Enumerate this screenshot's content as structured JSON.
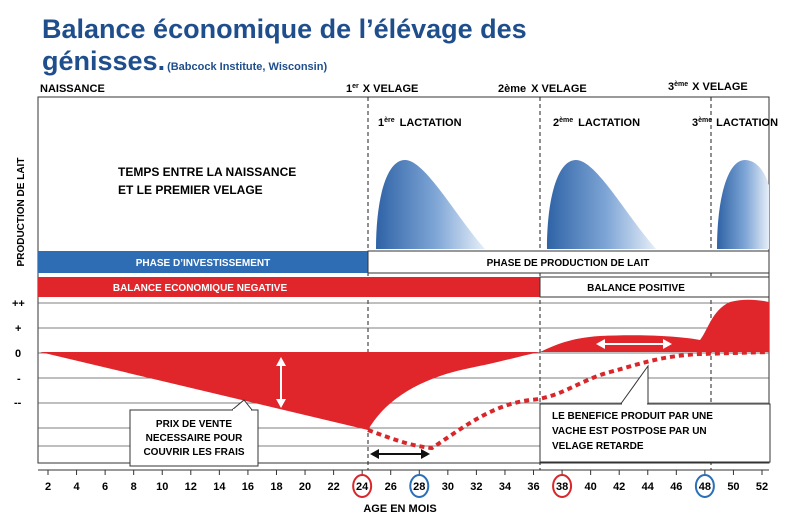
{
  "title": {
    "line1": "Balance économique de l’élévage des",
    "line2": "génisses.",
    "source": "(Babcock Institute, Wisconsin)"
  },
  "events": {
    "birth": "NAISSANCE",
    "calving1_num": "1",
    "calving1_sup": "er",
    "calving1_text": "X VELAGE",
    "calving2_num": "2ème",
    "calving2_text": "X VELAGE",
    "calving3_num": "3",
    "calving3_sup": "ème",
    "calving3_text": "X VELAGE"
  },
  "lactations": {
    "l1_num": "1",
    "l1_sup": "ère",
    "l1_text": "LACTATION",
    "l2_num": "2",
    "l2_sup": "ème",
    "l2_text": "LACTATION",
    "l3_num": "3",
    "l3_sup": "ème",
    "l3_text": "LACTATION"
  },
  "rearing_period": {
    "line1": "TEMPS ENTRE LA NAISSANCE",
    "line2": "ET LE PREMIER VELAGE"
  },
  "y_label_top": "PRODUCTION DE LAIT",
  "phases": {
    "investment": "PHASE D’INVESTISSEMENT",
    "production": "PHASE DE PRODUCTION DE LAIT",
    "negative": "BALANCE ECONOMIQUE NEGATIVE",
    "positive": "BALANCE POSITIVE"
  },
  "balance_scale": [
    "++",
    "+",
    "0",
    "-",
    "--"
  ],
  "annotations": {
    "sale_price": [
      "PRIX DE VENTE",
      "NECESSAIRE POUR",
      "COUVRIR LES FRAIS"
    ],
    "postponed": [
      "LE BENEFICE PRODUIT PAR UNE",
      "VACHE EST POSTPOSE PAR UN",
      "VELAGE RETARDE"
    ]
  },
  "x_axis": {
    "label": "AGE EN MOIS",
    "ticks": [
      "2",
      "4",
      "6",
      "8",
      "10",
      "12",
      "14",
      "16",
      "18",
      "20",
      "22",
      "24",
      "26",
      "28",
      "30",
      "32",
      "34",
      "36",
      "38",
      "40",
      "42",
      "44",
      "46",
      "48",
      "50",
      "52"
    ],
    "circled_red": [
      "24",
      "38"
    ],
    "circled_blue": [
      "28",
      "48"
    ]
  },
  "colors": {
    "title": "#1f4e8c",
    "investment_bar": "#2e6db4",
    "negative_red": "#e0262a",
    "lactation_blue": "#3c74b8",
    "circle_red": "#d9262a",
    "circle_blue": "#2a6fb8"
  }
}
